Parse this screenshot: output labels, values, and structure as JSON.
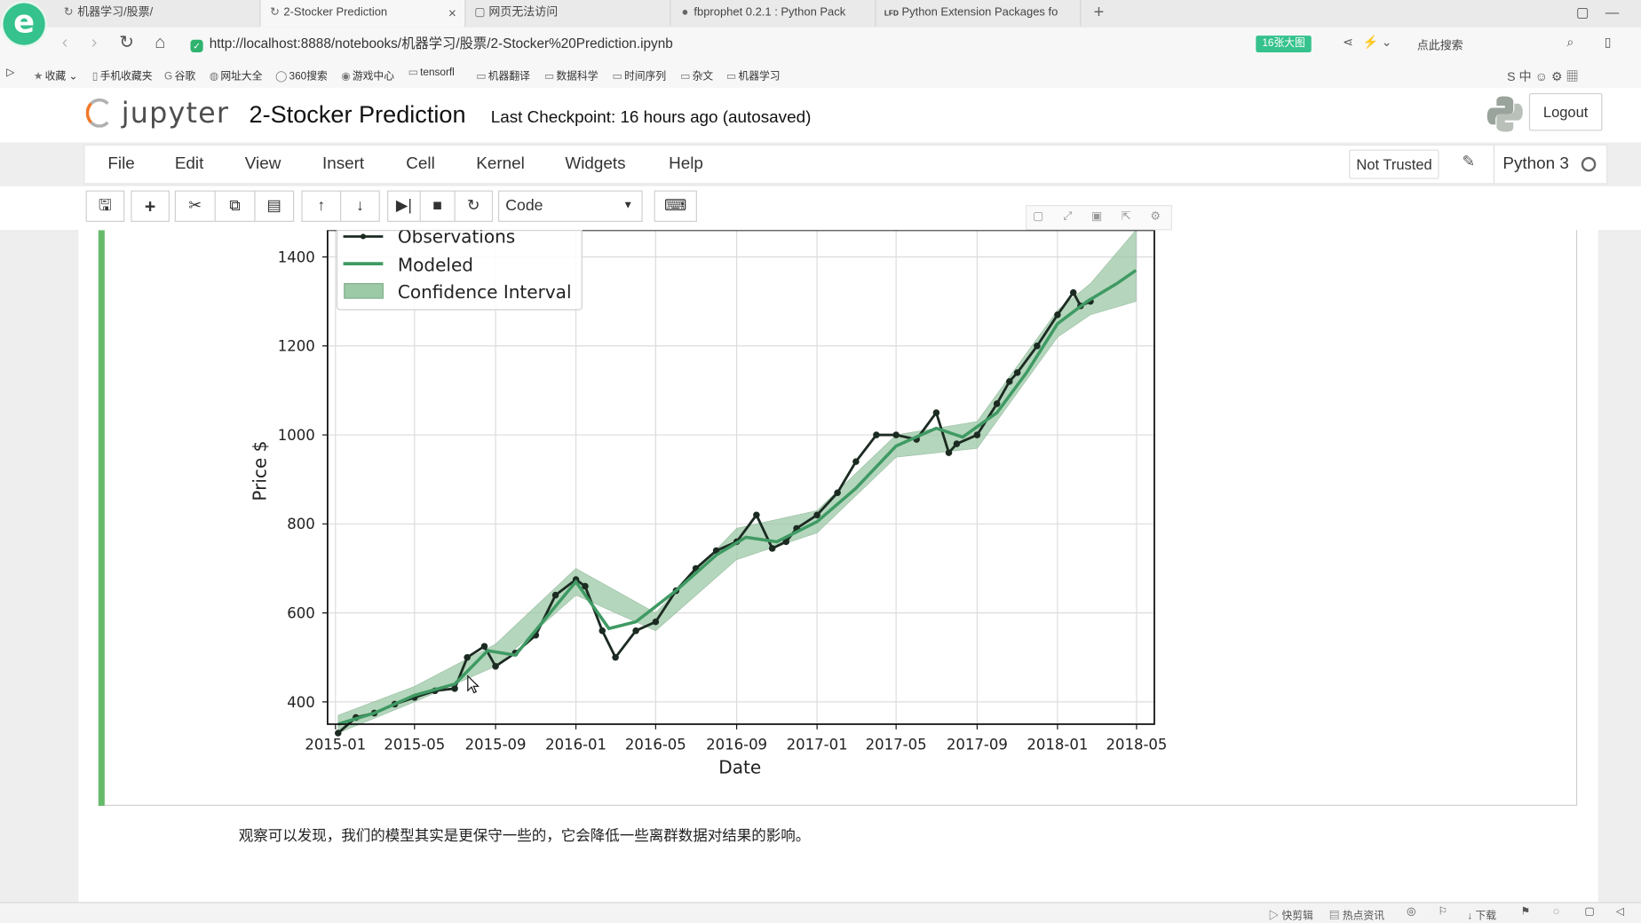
{
  "browser": {
    "tabs": [
      {
        "title": "机器学习/股票/",
        "icon": "↻"
      },
      {
        "title": "2-Stocker Prediction",
        "icon": "↻",
        "active": true
      },
      {
        "title": "网页无法访问",
        "icon": "▢"
      },
      {
        "title": "fbprophet 0.2.1 : Python Pack",
        "icon": "●"
      },
      {
        "title": "Python Extension Packages fo",
        "icon": "LFD"
      }
    ],
    "url": "http://localhost:8888/notebooks/机器学习/股票/2-Stocker%20Prediction.ipynb",
    "zoom_badge": "16张大图",
    "quick_search": "点此搜索",
    "bookmarks": [
      "收藏",
      "手机收藏夹",
      "谷歌",
      "网址大全",
      "360搜索",
      "游戏中心",
      "tensorfl",
      "机器翻译",
      "数据科学",
      "时间序列",
      "杂文",
      "机器学习"
    ]
  },
  "notebook": {
    "logo_text": "jupyter",
    "title": "2-Stocker Prediction",
    "checkpoint": "Last Checkpoint: 16 hours ago (autosaved)",
    "logout_label": "Logout",
    "menu": [
      "File",
      "Edit",
      "View",
      "Insert",
      "Cell",
      "Kernel",
      "Widgets",
      "Help"
    ],
    "trust_label": "Not Trusted",
    "kernel_name": "Python 3",
    "cell_type": "Code",
    "markdown_text": "观察可以发现，我们的模型其实是更保守一些的，它会降低一些离群数据对结果的影响。"
  },
  "statusbar": [
    "快剪辑",
    "热点资讯",
    "下载"
  ],
  "colors": {
    "observations": "#1c2b22",
    "modeled": "#3f9a63",
    "interval": "#9cc9a6",
    "cell_bar": "#66bb6a"
  },
  "chart_data": {
    "type": "line",
    "title": "",
    "xlabel": "Date",
    "ylabel": "Price $",
    "ylim": [
      350,
      1460
    ],
    "yticks": [
      400,
      600,
      800,
      1000,
      1200,
      1400
    ],
    "xticks": [
      "2015-01",
      "2015-05",
      "2015-09",
      "2016-01",
      "2016-05",
      "2016-09",
      "2017-01",
      "2017-05",
      "2017-09",
      "2018-01",
      "2018-05"
    ],
    "legend": {
      "placement": "upper-left",
      "entries": [
        "Observations",
        "Modeled",
        "Confidence Interval"
      ]
    },
    "grid": true,
    "series": [
      {
        "name": "Observations",
        "x": [
          "2015-01-05",
          "2015-02-01",
          "2015-03-01",
          "2015-04-01",
          "2015-05-01",
          "2015-06-01",
          "2015-07-01",
          "2015-07-20",
          "2015-08-15",
          "2015-09-01",
          "2015-10-01",
          "2015-11-01",
          "2015-12-01",
          "2016-01-01",
          "2016-01-15",
          "2016-02-10",
          "2016-03-01",
          "2016-04-01",
          "2016-05-01",
          "2016-06-01",
          "2016-07-01",
          "2016-08-01",
          "2016-09-01",
          "2016-10-01",
          "2016-10-25",
          "2016-11-15",
          "2016-12-01",
          "2017-01-01",
          "2017-02-01",
          "2017-03-01",
          "2017-04-01",
          "2017-05-01",
          "2017-06-01",
          "2017-07-01",
          "2017-07-20",
          "2017-08-01",
          "2017-09-01",
          "2017-10-01",
          "2017-10-20",
          "2017-11-01",
          "2017-12-01",
          "2018-01-01",
          "2018-01-25",
          "2018-02-05",
          "2018-02-20"
        ],
        "y": [
          330,
          365,
          375,
          395,
          410,
          425,
          430,
          500,
          525,
          480,
          510,
          550,
          640,
          675,
          660,
          560,
          500,
          560,
          580,
          650,
          700,
          740,
          760,
          820,
          745,
          760,
          790,
          820,
          870,
          940,
          1000,
          1000,
          990,
          1050,
          960,
          980,
          1000,
          1070,
          1120,
          1140,
          1200,
          1270,
          1320,
          1290,
          1300
        ]
      },
      {
        "name": "Modeled",
        "x": [
          "2015-01-05",
          "2015-03-01",
          "2015-05-01",
          "2015-07-01",
          "2015-08-20",
          "2015-10-01",
          "2015-12-01",
          "2016-01-01",
          "2016-02-20",
          "2016-04-01",
          "2016-06-01",
          "2016-08-01",
          "2016-09-15",
          "2016-11-01",
          "2017-01-01",
          "2017-03-01",
          "2017-05-01",
          "2017-07-01",
          "2017-08-10",
          "2017-10-01",
          "2017-11-15",
          "2018-01-01",
          "2018-02-15",
          "2018-04-01",
          "2018-04-30"
        ],
        "y": [
          350,
          375,
          415,
          440,
          515,
          505,
          615,
          670,
          565,
          580,
          650,
          730,
          770,
          760,
          805,
          880,
          975,
          1015,
          995,
          1050,
          1140,
          1250,
          1300,
          1340,
          1370
        ]
      },
      {
        "name": "Confidence Interval",
        "x": [
          "2015-01-05",
          "2015-05-01",
          "2015-09-01",
          "2016-01-01",
          "2016-05-01",
          "2016-09-01",
          "2017-01-01",
          "2017-05-01",
          "2017-09-01",
          "2018-01-01",
          "2018-02-20",
          "2018-04-30"
        ],
        "lower": [
          330,
          400,
          480,
          640,
          560,
          720,
          780,
          950,
          970,
          1220,
          1270,
          1300
        ],
        "upper": [
          370,
          435,
          530,
          700,
          600,
          790,
          830,
          1000,
          1030,
          1280,
          1340,
          1460
        ]
      }
    ]
  }
}
